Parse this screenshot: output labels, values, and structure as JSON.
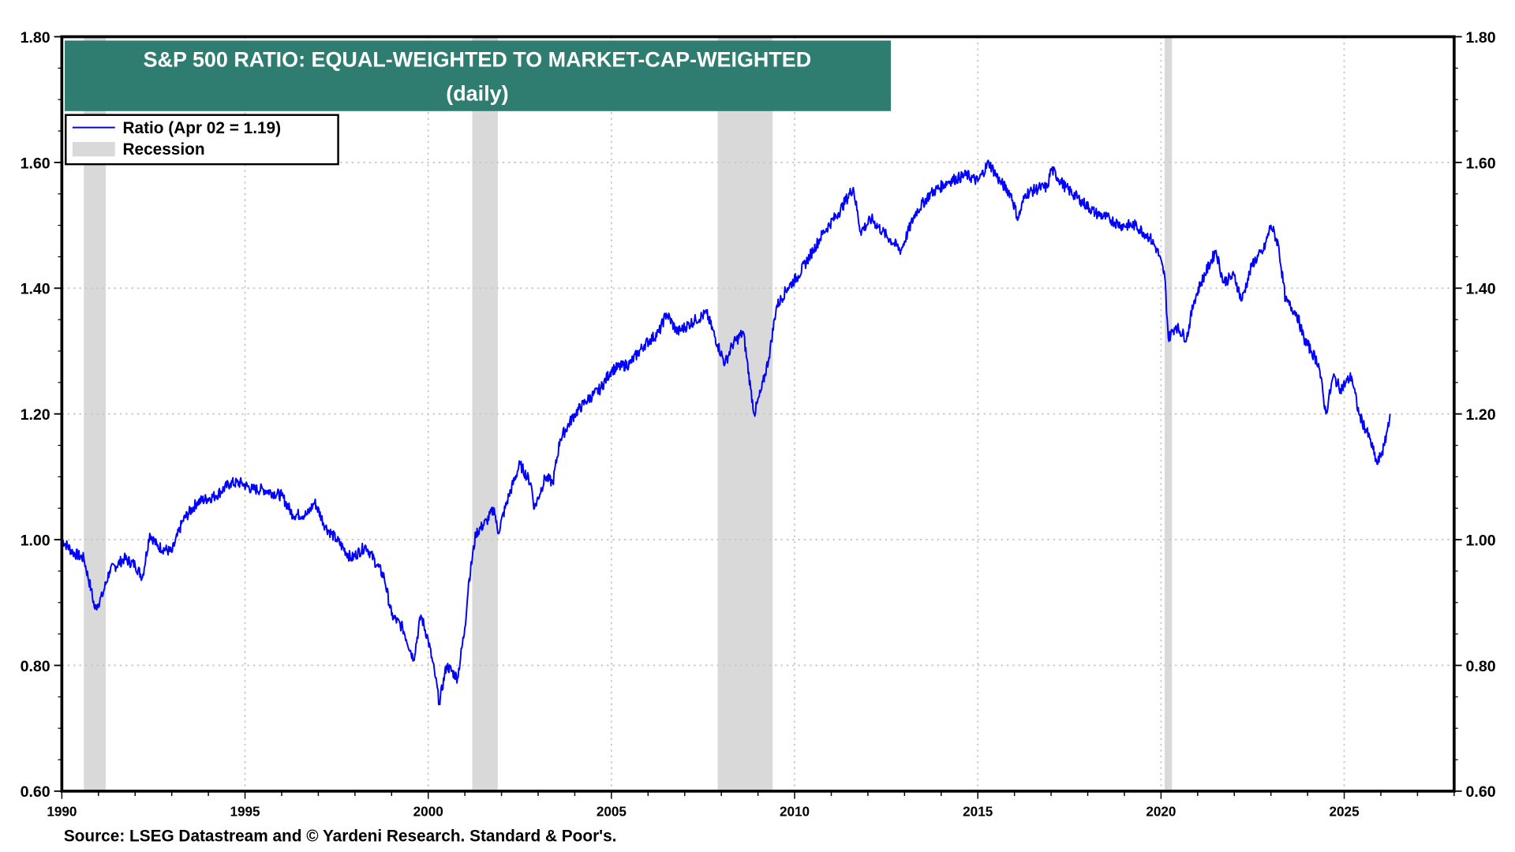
{
  "chart_data": {
    "type": "line",
    "title": "S&P 500 RATIO: EQUAL-WEIGHTED TO MARKET-CAP-WEIGHTED",
    "subtitle": "(daily)",
    "xlabel": "",
    "ylabel": "",
    "xlim": [
      1990,
      2028
    ],
    "ylim": [
      0.6,
      1.8
    ],
    "x_ticks": [
      "1990",
      "1995",
      "2000",
      "2005",
      "2010",
      "2015",
      "2020",
      "2025"
    ],
    "y_ticks": [
      "0.60",
      "0.80",
      "1.00",
      "1.20",
      "1.40",
      "1.60",
      "1.80"
    ],
    "y_axis_sides": "left and right",
    "grid": true,
    "legend_placement": "top-left",
    "legend": [
      {
        "label": "Ratio (Apr 02 = 1.19)",
        "color": "#0000ff",
        "kind": "line"
      },
      {
        "label": "Recession",
        "color": "#d9d9d9",
        "kind": "shade"
      }
    ],
    "recessions": [
      [
        1990.6,
        1991.2
      ],
      [
        2001.2,
        2001.9
      ],
      [
        2007.9,
        2009.4
      ],
      [
        2020.1,
        2020.3
      ]
    ],
    "series": [
      {
        "name": "Ratio (Apr 02 = 1.19)",
        "color": "#0000ff",
        "x": [
          1990.0,
          1990.3,
          1990.6,
          1990.8,
          1990.9,
          1991.1,
          1991.3,
          1991.7,
          1992.0,
          1992.2,
          1992.4,
          1992.6,
          1993.0,
          1993.3,
          1993.7,
          1994.2,
          1994.6,
          1994.9,
          1995.2,
          1995.5,
          1996.0,
          1996.3,
          1996.7,
          1996.9,
          1997.2,
          1997.5,
          1997.9,
          1998.3,
          1998.6,
          1998.8,
          1999.0,
          1999.3,
          1999.6,
          1999.8,
          2000.0,
          2000.2,
          2000.3,
          2000.5,
          2000.8,
          2001.0,
          2001.1,
          2001.3,
          2001.6,
          2001.8,
          2001.9,
          2002.2,
          2002.5,
          2002.8,
          2002.9,
          2003.2,
          2003.4,
          2003.6,
          2004.0,
          2004.3,
          2004.7,
          2005.0,
          2005.5,
          2005.9,
          2006.3,
          2006.5,
          2006.8,
          2007.3,
          2007.6,
          2007.9,
          2008.1,
          2008.3,
          2008.6,
          2008.8,
          2008.9,
          2009.1,
          2009.3,
          2009.5,
          2009.8,
          2010.1,
          2010.5,
          2010.8,
          2011.2,
          2011.6,
          2011.8,
          2012.1,
          2012.4,
          2012.9,
          2013.3,
          2013.7,
          2014.2,
          2014.7,
          2015.0,
          2015.3,
          2015.6,
          2015.9,
          2016.1,
          2016.3,
          2016.7,
          2016.9,
          2017.0,
          2017.4,
          2017.8,
          2018.2,
          2018.6,
          2018.9,
          2019.3,
          2019.7,
          2019.9,
          2020.1,
          2020.2,
          2020.4,
          2020.7,
          2020.9,
          2021.1,
          2021.5,
          2021.7,
          2022.0,
          2022.2,
          2022.5,
          2022.8,
          2023.0,
          2023.2,
          2023.4,
          2023.7,
          2023.9,
          2024.1,
          2024.3,
          2024.5,
          2024.7,
          2024.9,
          2025.2,
          2025.4,
          2025.7,
          2025.9,
          2026.1,
          2026.25
        ],
        "y": [
          1.0,
          0.98,
          0.97,
          0.92,
          0.89,
          0.91,
          0.95,
          0.97,
          0.96,
          0.94,
          1.01,
          0.99,
          0.98,
          1.03,
          1.06,
          1.07,
          1.09,
          1.09,
          1.08,
          1.08,
          1.07,
          1.04,
          1.04,
          1.06,
          1.02,
          1.0,
          0.97,
          0.99,
          0.96,
          0.94,
          0.88,
          0.86,
          0.81,
          0.88,
          0.84,
          0.78,
          0.74,
          0.8,
          0.78,
          0.86,
          0.93,
          1.01,
          1.03,
          1.05,
          1.01,
          1.07,
          1.12,
          1.09,
          1.05,
          1.1,
          1.09,
          1.16,
          1.2,
          1.22,
          1.24,
          1.27,
          1.28,
          1.31,
          1.33,
          1.36,
          1.33,
          1.35,
          1.36,
          1.31,
          1.28,
          1.31,
          1.33,
          1.24,
          1.2,
          1.24,
          1.29,
          1.37,
          1.4,
          1.42,
          1.46,
          1.49,
          1.52,
          1.56,
          1.49,
          1.51,
          1.49,
          1.46,
          1.52,
          1.55,
          1.57,
          1.58,
          1.57,
          1.6,
          1.57,
          1.55,
          1.51,
          1.55,
          1.56,
          1.56,
          1.59,
          1.56,
          1.54,
          1.52,
          1.51,
          1.5,
          1.5,
          1.48,
          1.46,
          1.42,
          1.32,
          1.34,
          1.32,
          1.38,
          1.41,
          1.46,
          1.41,
          1.42,
          1.38,
          1.44,
          1.46,
          1.5,
          1.47,
          1.38,
          1.36,
          1.32,
          1.3,
          1.28,
          1.2,
          1.26,
          1.24,
          1.26,
          1.2,
          1.16,
          1.12,
          1.15,
          1.2
        ]
      }
    ],
    "source": "Source: LSEG Datastream and © Yardeni Research. Standard & Poor's."
  }
}
